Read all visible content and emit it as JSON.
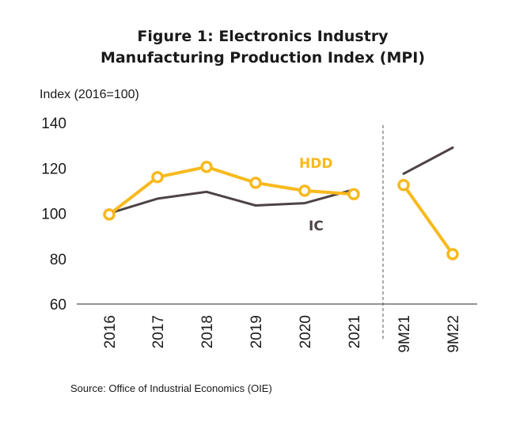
{
  "chart_data": {
    "type": "line",
    "title": "Figure 1: Electronics Industry",
    "subtitle": "Manufacturing Production Index (MPI)",
    "ylabel": "Index (2016=100)",
    "categories": [
      "2016",
      "2017",
      "2018",
      "2019",
      "2020",
      "2021",
      "9M21",
      "9M22"
    ],
    "ylim": [
      60,
      140
    ],
    "yticks": [
      60,
      80,
      100,
      120,
      140
    ],
    "grid": false,
    "series": [
      {
        "name": "HDD",
        "color": "#F7B91E",
        "markers": true,
        "values": [
          99.5,
          116,
          120.5,
          113.5,
          110,
          108.5,
          112.5,
          82
        ]
      },
      {
        "name": "IC",
        "color": "#4E4344",
        "markers": false,
        "values": [
          100,
          106.5,
          109.5,
          103.5,
          104.5,
          110.5,
          117.5,
          129
        ]
      }
    ],
    "segments": [
      [
        0,
        5
      ],
      [
        6,
        7
      ]
    ],
    "divider_between": [
      "2021",
      "9M21"
    ],
    "source": "Source: Office of Industrial Economics (OIE)"
  }
}
